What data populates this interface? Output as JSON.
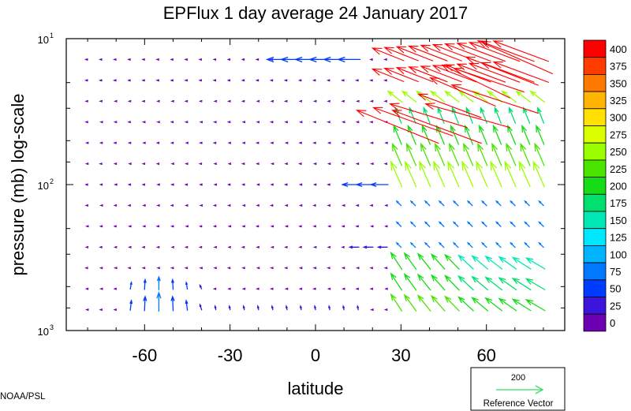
{
  "chart_data": {
    "type": "vector_field",
    "title": "EPFlux  1 day average  24 January   2017",
    "xlabel": "latitude",
    "ylabel": "pressure (mb)  log-scale",
    "x_ticks": [
      -60,
      -30,
      0,
      30,
      60
    ],
    "x_tick_labels": [
      "-60",
      "-30",
      "0",
      "30",
      "60"
    ],
    "xlim": [
      -87.5,
      87.5
    ],
    "y_scale": "log",
    "ylim_mb": [
      1000,
      10
    ],
    "y_ticks": [
      {
        "value": 10,
        "base": "10",
        "exp": "1"
      },
      {
        "value": 100,
        "base": "10",
        "exp": "2"
      },
      {
        "value": 1000,
        "base": "10",
        "exp": "3"
      }
    ],
    "colorbar": {
      "labels": [
        "400",
        "375",
        "350",
        "325",
        "300",
        "275",
        "250",
        "225",
        "200",
        "175",
        "150",
        "125",
        "100",
        "75",
        "50",
        "25",
        "0"
      ],
      "colors": [
        "#ff0000",
        "#ff3b00",
        "#ff7800",
        "#ffb400",
        "#ffe000",
        "#dcff00",
        "#9bff00",
        "#4be400",
        "#16dc16",
        "#00e06e",
        "#00e8b4",
        "#00e8ff",
        "#00b4ff",
        "#0078ff",
        "#003cff",
        "#3c14dc",
        "#6e00b4"
      ]
    },
    "reference_vector": {
      "magnitude_label": "200",
      "label": "Reference Vector",
      "color": "#33dd66"
    },
    "grid": false,
    "credit": "NOAA/PSL"
  }
}
